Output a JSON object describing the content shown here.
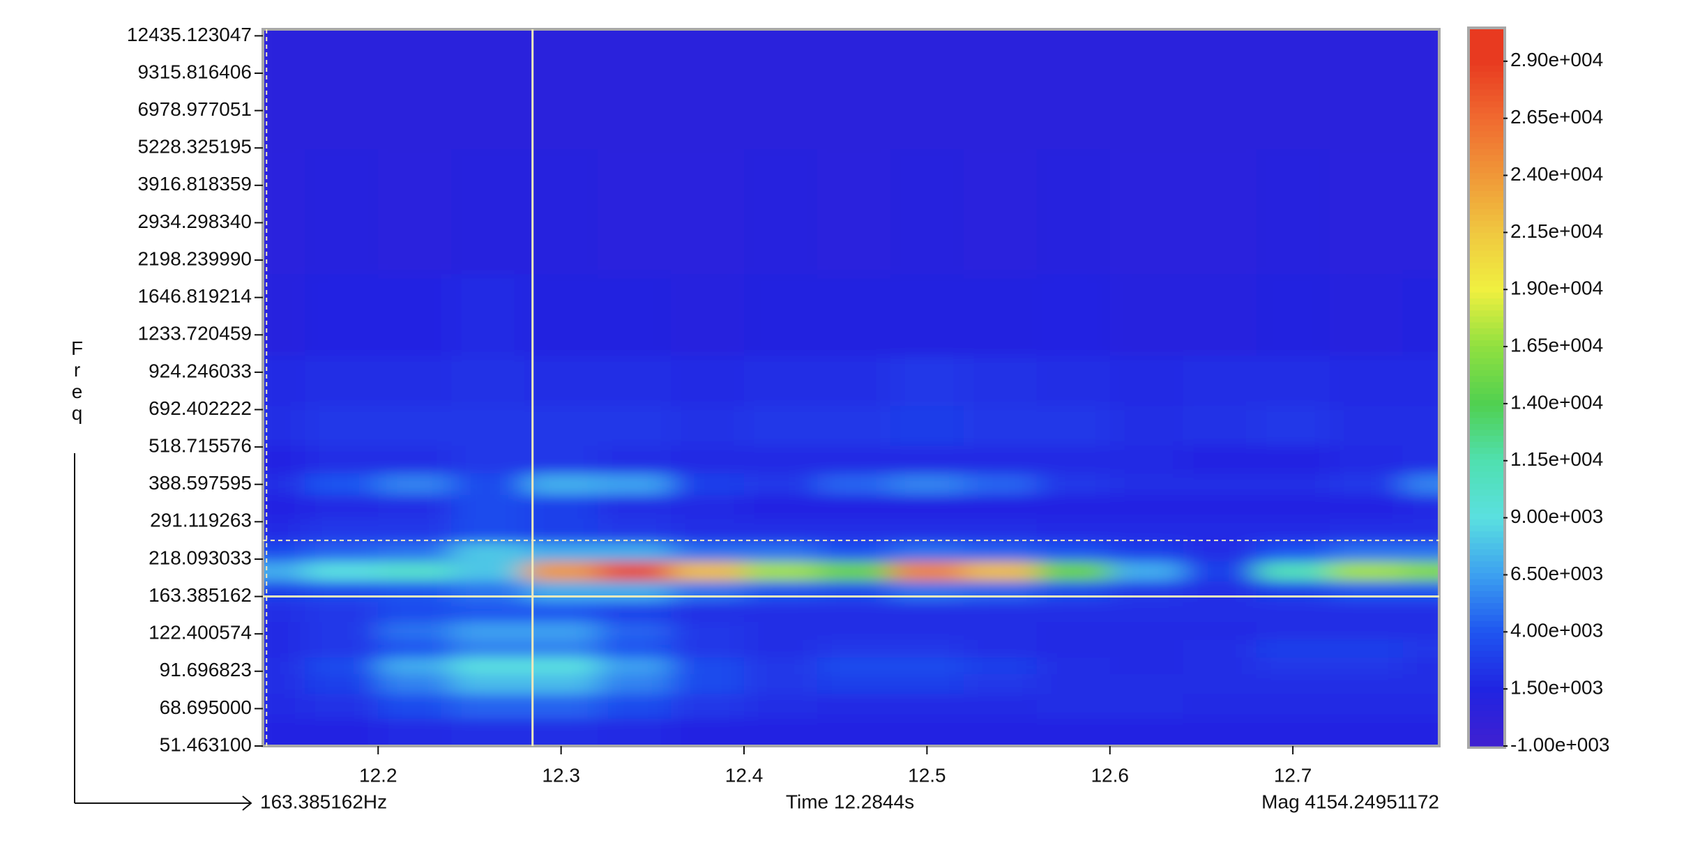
{
  "chart_data": {
    "type": "heatmap",
    "x": [
      12.14,
      12.18,
      12.22,
      12.26,
      12.3,
      12.34,
      12.38,
      12.42,
      12.46,
      12.5,
      12.54,
      12.58,
      12.62,
      12.66,
      12.7,
      12.74,
      12.78
    ],
    "y": [
      58,
      70,
      85,
      95,
      110,
      125,
      145,
      170,
      200,
      230,
      270,
      330,
      390,
      460,
      600,
      850,
      1300,
      3000,
      9000
    ],
    "z": [
      [
        1500,
        1500,
        1800,
        2000,
        2000,
        1800,
        1500,
        1500,
        1500,
        1500,
        1500,
        1500,
        1500,
        1500,
        1500,
        1500,
        1500
      ],
      [
        1800,
        2200,
        3500,
        4500,
        4500,
        3500,
        2500,
        2000,
        1800,
        1800,
        1800,
        2000,
        2000,
        1800,
        1800,
        1800,
        1800
      ],
      [
        2000,
        3000,
        5500,
        7500,
        7500,
        5500,
        3500,
        2500,
        3000,
        3000,
        2500,
        2000,
        2000,
        2000,
        2000,
        2000,
        2000
      ],
      [
        2000,
        3500,
        7000,
        9000,
        9000,
        6500,
        3500,
        2500,
        3500,
        3500,
        3000,
        2000,
        1800,
        2000,
        2500,
        2500,
        2000
      ],
      [
        1800,
        2500,
        4000,
        5500,
        5500,
        4000,
        2500,
        2000,
        2500,
        2500,
        2000,
        1800,
        1800,
        2000,
        3000,
        3000,
        2500
      ],
      [
        1800,
        2500,
        5000,
        6500,
        6500,
        4500,
        2500,
        2000,
        2000,
        2000,
        2000,
        1800,
        1800,
        1800,
        2000,
        2000,
        2000
      ],
      [
        2000,
        2500,
        3500,
        4000,
        4000,
        3000,
        2000,
        2000,
        2000,
        2000,
        2000,
        2000,
        2000,
        2000,
        2000,
        2000,
        2000
      ],
      [
        3000,
        3500,
        4000,
        5000,
        7000,
        7000,
        5000,
        4000,
        3500,
        5000,
        4500,
        3500,
        2500,
        2000,
        3000,
        4000,
        4000
      ],
      [
        7000,
        9000,
        10000,
        8000,
        24000,
        28000,
        22000,
        17000,
        15000,
        25000,
        22000,
        15000,
        7000,
        3000,
        11000,
        17000,
        16000
      ],
      [
        3500,
        4500,
        5000,
        8000,
        7000,
        7000,
        5000,
        5000,
        4000,
        5000,
        4500,
        4000,
        3000,
        2000,
        4000,
        5000,
        5000
      ],
      [
        1800,
        2500,
        2500,
        3500,
        3000,
        2500,
        2000,
        2000,
        2000,
        2000,
        2000,
        1800,
        1800,
        1800,
        1800,
        2000,
        2000
      ],
      [
        1500,
        1800,
        2000,
        3500,
        3000,
        2000,
        1800,
        1500,
        1500,
        1500,
        1500,
        1500,
        1500,
        1500,
        1500,
        1500,
        1800
      ],
      [
        2000,
        4000,
        5500,
        3500,
        7000,
        6500,
        3000,
        2500,
        4500,
        5500,
        4500,
        2500,
        2000,
        2000,
        2000,
        2500,
        5500
      ],
      [
        1500,
        2000,
        2000,
        2500,
        2500,
        2000,
        1800,
        1800,
        1800,
        1800,
        1800,
        1800,
        1800,
        1500,
        1500,
        1800,
        2000
      ],
      [
        2000,
        2500,
        2500,
        2500,
        2500,
        2500,
        2200,
        2500,
        2500,
        2800,
        2500,
        2500,
        2000,
        2200,
        2500,
        2000,
        2000
      ],
      [
        1800,
        2000,
        2000,
        2200,
        2000,
        2000,
        1800,
        2000,
        2000,
        2500,
        2200,
        2000,
        1800,
        2000,
        2000,
        1800,
        1800
      ],
      [
        1000,
        1500,
        1500,
        1800,
        1200,
        1200,
        1000,
        1200,
        1200,
        1200,
        1200,
        1500,
        1000,
        1000,
        1200,
        1000,
        1200
      ],
      [
        800,
        900,
        800,
        1000,
        900,
        800,
        800,
        900,
        800,
        900,
        800,
        900,
        800,
        800,
        900,
        800,
        800
      ],
      [
        600,
        600,
        600,
        600,
        600,
        600,
        600,
        600,
        600,
        600,
        600,
        600,
        600,
        600,
        600,
        600,
        600
      ]
    ],
    "xlim": [
      12.137,
      12.78
    ],
    "xticks": [
      12.2,
      12.3,
      12.4,
      12.5,
      12.6,
      12.7
    ],
    "ylim": [
      51.4631,
      13080
    ],
    "y_log": true,
    "yticks": [
      {
        "value": 51.4631,
        "label": "51.463100"
      },
      {
        "value": 68.695,
        "label": "68.695000"
      },
      91.696823,
      122.400574,
      163.385162,
      218.093033,
      291.119263,
      388.597595,
      518.715576,
      692.402222,
      924.246033,
      1233.720459,
      1646.819214,
      {
        "value": 2198.23999,
        "label": "2198.239990"
      },
      {
        "value": 2934.29834,
        "label": "2934.298340"
      },
      3916.818359,
      5228.325195,
      6978.977051,
      9315.816406,
      12435.123047
    ],
    "y_label": "Freq",
    "clim": [
      -1000,
      30400
    ],
    "cticks": [
      {
        "value": -1000,
        "label": "-1.00e+003"
      },
      {
        "value": 1500,
        "label": "1.50e+003"
      },
      {
        "value": 4000,
        "label": "4.00e+003"
      },
      {
        "value": 6500,
        "label": "6.50e+003"
      },
      {
        "value": 9000,
        "label": "9.00e+003"
      },
      {
        "value": 11500,
        "label": "1.15e+004"
      },
      {
        "value": 14000,
        "label": "1.40e+004"
      },
      {
        "value": 16500,
        "label": "1.65e+004"
      },
      {
        "value": 19000,
        "label": "1.90e+004"
      },
      {
        "value": 21500,
        "label": "2.15e+004"
      },
      {
        "value": 24000,
        "label": "2.40e+004"
      },
      {
        "value": 26500,
        "label": "2.65e+004"
      },
      {
        "value": 29000,
        "label": "2.90e+004"
      }
    ],
    "colors": [
      "#4020d0",
      "#2024e2",
      "#1f55f0",
      "#3ca0f0",
      "#5ae0e0",
      "#50e0b0",
      "#50d050",
      "#90e040",
      "#f0f040",
      "#f0c840",
      "#f09838",
      "#f06a30",
      "#e83a20"
    ],
    "cursor": {
      "x": {
        "value": 12.2844,
        "label": "Time 12.2844s"
      },
      "y": {
        "value": 163.385162,
        "label": "163.385162Hz"
      },
      "magnitude": "Mag 4154.24951172"
    },
    "markers": {
      "x": 12.139,
      "y": 252
    },
    "crosshair_color": "#f2eabc"
  }
}
